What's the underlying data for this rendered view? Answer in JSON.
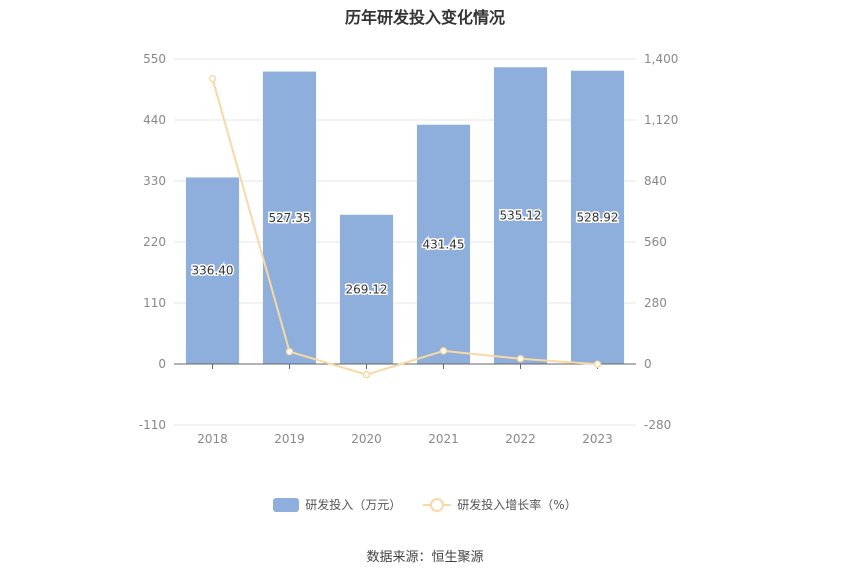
{
  "chart_data": {
    "type": "bar",
    "title": "历年研发投入变化情况",
    "categories": [
      "2018",
      "2019",
      "2020",
      "2021",
      "2022",
      "2023"
    ],
    "series": [
      {
        "name": "研发投入（万元）",
        "type": "bar",
        "axis": "left",
        "values": [
          336.4,
          527.35,
          269.12,
          431.45,
          535.12,
          528.92
        ],
        "labels": [
          "336.40",
          "527.35",
          "269.12",
          "431.45",
          "535.12",
          "528.92"
        ],
        "color": "#8eaedb"
      },
      {
        "name": "研发投入增长率（%）",
        "type": "line",
        "axis": "right",
        "values": [
          1310,
          56.77,
          -48.97,
          60.32,
          24.03,
          -1.16
        ],
        "color": "#f7d9a6"
      }
    ],
    "y_left": {
      "ylim": [
        -110,
        550
      ],
      "ticks": [
        "550",
        "440",
        "330",
        "220",
        "110",
        "0",
        "-110"
      ]
    },
    "y_right": {
      "ylim": [
        -280,
        1400
      ],
      "ticks": [
        "1,400",
        "1,120",
        "840",
        "560",
        "280",
        "0",
        "-280"
      ]
    },
    "grid": true,
    "legend_position": "bottom"
  },
  "source": "数据来源：恒生聚源"
}
